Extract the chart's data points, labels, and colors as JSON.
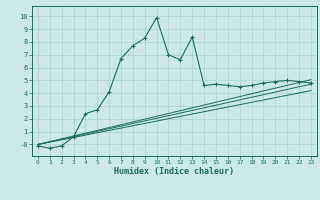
{
  "title": "",
  "xlabel": "Humidex (Indice chaleur)",
  "bg_color": "#cde8e8",
  "line_color": "#1a6b5e",
  "grid_color": "#aad0d0",
  "xlim": [
    -0.5,
    23.5
  ],
  "ylim": [
    -0.9,
    10.8
  ],
  "xticks": [
    0,
    1,
    2,
    3,
    4,
    5,
    6,
    7,
    8,
    9,
    10,
    11,
    12,
    13,
    14,
    15,
    16,
    17,
    18,
    19,
    20,
    21,
    22,
    23
  ],
  "yticks": [
    0,
    1,
    2,
    3,
    4,
    5,
    6,
    7,
    8,
    9,
    10
  ],
  "ytick_labels": [
    "-0",
    "1",
    "2",
    "3",
    "4",
    "5",
    "6",
    "7",
    "8",
    "9",
    "10"
  ],
  "main_x": [
    0,
    1,
    2,
    3,
    4,
    5,
    6,
    7,
    8,
    9,
    10,
    11,
    12,
    13,
    14,
    15,
    16,
    17,
    18,
    19,
    20,
    21,
    22,
    23
  ],
  "main_y": [
    -0.1,
    -0.3,
    -0.1,
    0.6,
    2.4,
    2.7,
    4.1,
    6.7,
    7.7,
    8.3,
    9.9,
    7.0,
    6.6,
    8.4,
    4.6,
    4.7,
    4.6,
    4.5,
    4.6,
    4.8,
    4.9,
    5.0,
    4.9,
    4.8
  ],
  "line1_y_end": 4.2,
  "line2_y_end": 4.7,
  "line3_y_end": 5.05
}
